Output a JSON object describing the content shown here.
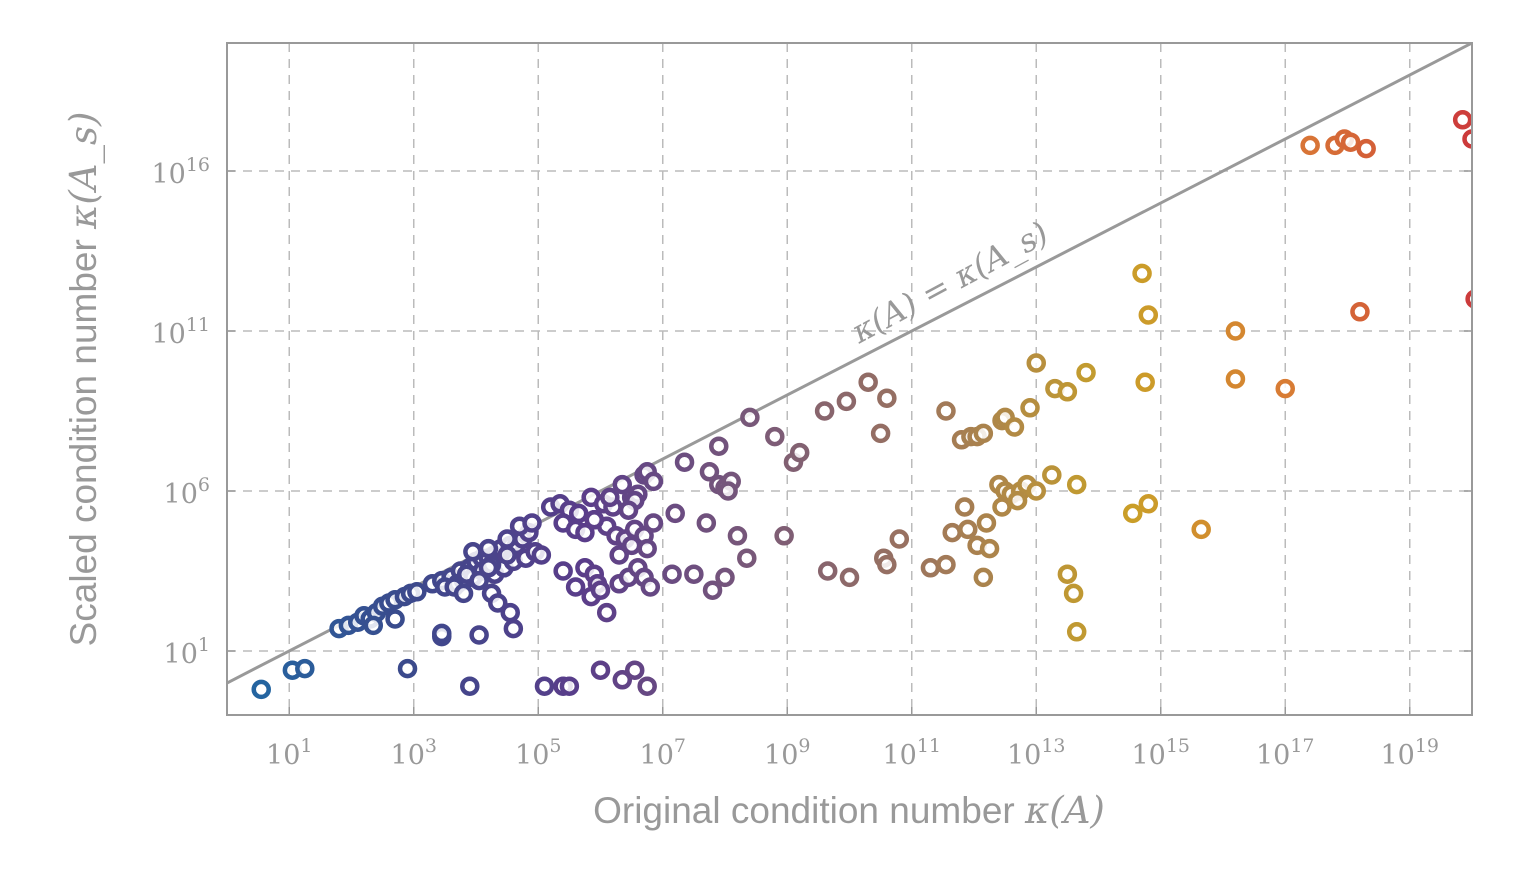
{
  "chart_data": {
    "type": "scatter",
    "xscale": "log",
    "yscale": "log",
    "xlim": [
      1,
      1e+20
    ],
    "ylim": [
      0.1,
      1e+20
    ],
    "grid": true,
    "xlabel_text": "Original condition number ",
    "xlabel_math": "κ(A)",
    "ylabel_text": "Scaled condition number ",
    "ylabel_math": "κ(A_s)",
    "diagonal_label": "κ(A) = κ(A_s)",
    "x_ticks": [
      {
        "exp": 1,
        "base": "10",
        "sup": "1"
      },
      {
        "exp": 3,
        "base": "10",
        "sup": "3"
      },
      {
        "exp": 5,
        "base": "10",
        "sup": "5"
      },
      {
        "exp": 7,
        "base": "10",
        "sup": "7"
      },
      {
        "exp": 9,
        "base": "10",
        "sup": "9"
      },
      {
        "exp": 11,
        "base": "10",
        "sup": "11"
      },
      {
        "exp": 13,
        "base": "10",
        "sup": "13"
      },
      {
        "exp": 15,
        "base": "10",
        "sup": "15"
      },
      {
        "exp": 17,
        "base": "10",
        "sup": "17"
      },
      {
        "exp": 19,
        "base": "10",
        "sup": "19"
      }
    ],
    "y_ticks": [
      {
        "exp": 1,
        "base": "10",
        "sup": "1"
      },
      {
        "exp": 6,
        "base": "10",
        "sup": "6"
      },
      {
        "exp": 11,
        "base": "10",
        "sup": "11"
      },
      {
        "exp": 16,
        "base": "10",
        "sup": "16"
      }
    ],
    "colormap": [
      "#1f6aa5",
      "#3b4a8c",
      "#5a3d8a",
      "#7a5a78",
      "#a0785a",
      "#c9a227",
      "#d97a35",
      "#cc3b3b"
    ],
    "points": [
      [
        0.55,
        -0.2
      ],
      [
        1.05,
        0.4
      ],
      [
        1.25,
        0.45
      ],
      [
        1.8,
        1.7
      ],
      [
        1.95,
        1.8
      ],
      [
        2.1,
        1.9
      ],
      [
        2.2,
        2.1
      ],
      [
        2.3,
        2.0
      ],
      [
        2.4,
        2.2
      ],
      [
        2.5,
        2.4
      ],
      [
        2.6,
        2.5
      ],
      [
        2.7,
        2.6
      ],
      [
        2.85,
        2.7
      ],
      [
        2.95,
        2.8
      ],
      [
        3.05,
        2.85
      ],
      [
        2.7,
        2.0
      ],
      [
        2.35,
        1.8
      ],
      [
        2.9,
        0.45
      ],
      [
        3.3,
        3.1
      ],
      [
        3.45,
        3.2
      ],
      [
        3.6,
        3.3
      ],
      [
        3.75,
        3.5
      ],
      [
        3.9,
        3.6
      ],
      [
        4.0,
        3.8
      ],
      [
        4.1,
        3.9
      ],
      [
        4.2,
        3.9
      ],
      [
        4.3,
        4.0
      ],
      [
        4.4,
        4.2
      ],
      [
        4.55,
        4.3
      ],
      [
        4.65,
        4.3
      ],
      [
        4.75,
        4.5
      ],
      [
        4.85,
        4.7
      ],
      [
        3.5,
        3.0
      ],
      [
        3.7,
        3.1
      ],
      [
        3.8,
        3.2
      ],
      [
        3.95,
        3.3
      ],
      [
        4.1,
        3.5
      ],
      [
        4.3,
        3.4
      ],
      [
        4.45,
        3.6
      ],
      [
        4.6,
        3.8
      ],
      [
        4.8,
        3.9
      ],
      [
        4.95,
        4.1
      ],
      [
        5.05,
        4.0
      ],
      [
        3.65,
        3.0
      ],
      [
        3.85,
        3.4
      ],
      [
        4.05,
        3.2
      ],
      [
        4.25,
        3.7
      ],
      [
        4.5,
        4.0
      ],
      [
        4.2,
        3.6
      ],
      [
        3.95,
        4.1
      ],
      [
        4.2,
        4.2
      ],
      [
        4.5,
        4.5
      ],
      [
        4.7,
        4.9
      ],
      [
        4.9,
        5.0
      ],
      [
        3.8,
        2.8
      ],
      [
        4.25,
        2.8
      ],
      [
        4.35,
        2.5
      ],
      [
        4.55,
        2.2
      ],
      [
        3.45,
        1.45
      ],
      [
        3.45,
        1.55
      ],
      [
        4.05,
        1.5
      ],
      [
        4.6,
        1.7
      ],
      [
        3.9,
        -0.1
      ],
      [
        5.1,
        -0.1
      ],
      [
        5.4,
        -0.1
      ],
      [
        5.5,
        -0.1
      ],
      [
        6.0,
        0.4
      ],
      [
        6.35,
        0.1
      ],
      [
        6.55,
        0.4
      ],
      [
        6.75,
        -0.1
      ],
      [
        5.2,
        5.5
      ],
      [
        5.35,
        5.6
      ],
      [
        5.5,
        5.4
      ],
      [
        5.65,
        5.3
      ],
      [
        5.85,
        5.8
      ],
      [
        6.05,
        5.6
      ],
      [
        6.2,
        5.5
      ],
      [
        5.4,
        5.0
      ],
      [
        5.6,
        4.8
      ],
      [
        5.75,
        4.7
      ],
      [
        5.9,
        5.1
      ],
      [
        6.1,
        4.9
      ],
      [
        6.25,
        4.6
      ],
      [
        6.4,
        4.5
      ],
      [
        6.55,
        4.8
      ],
      [
        6.7,
        4.6
      ],
      [
        6.85,
        5.0
      ],
      [
        5.6,
        3.0
      ],
      [
        5.4,
        3.5
      ],
      [
        5.75,
        3.6
      ],
      [
        5.9,
        3.4
      ],
      [
        5.95,
        3.1
      ],
      [
        5.85,
        2.7
      ],
      [
        6.0,
        2.9
      ],
      [
        6.3,
        3.1
      ],
      [
        6.45,
        3.3
      ],
      [
        6.6,
        3.6
      ],
      [
        6.3,
        4.0
      ],
      [
        6.5,
        4.3
      ],
      [
        6.75,
        4.2
      ],
      [
        6.7,
        3.3
      ],
      [
        6.8,
        3.0
      ],
      [
        6.1,
        2.2
      ],
      [
        7.15,
        3.4
      ],
      [
        7.5,
        3.4
      ],
      [
        7.8,
        2.9
      ],
      [
        8.0,
        3.3
      ],
      [
        5.9,
        5.1
      ],
      [
        6.15,
        5.8
      ],
      [
        6.35,
        6.2
      ],
      [
        6.5,
        5.8
      ],
      [
        6.6,
        5.9
      ],
      [
        6.7,
        6.5
      ],
      [
        6.75,
        6.6
      ],
      [
        6.55,
        5.7
      ],
      [
        6.45,
        5.4
      ],
      [
        6.85,
        6.3
      ],
      [
        7.2,
        5.3
      ],
      [
        7.35,
        6.9
      ],
      [
        7.7,
        5.0
      ],
      [
        7.75,
        6.6
      ],
      [
        7.9,
        6.2
      ],
      [
        8.0,
        6.1
      ],
      [
        8.1,
        6.3
      ],
      [
        8.05,
        6.0
      ],
      [
        7.9,
        7.4
      ],
      [
        8.4,
        8.3
      ],
      [
        8.8,
        7.7
      ],
      [
        9.1,
        6.9
      ],
      [
        9.2,
        7.2
      ],
      [
        8.2,
        4.6
      ],
      [
        8.95,
        4.6
      ],
      [
        8.35,
        3.9
      ],
      [
        9.6,
        8.5
      ],
      [
        9.95,
        8.8
      ],
      [
        10.3,
        9.4
      ],
      [
        10.6,
        8.9
      ],
      [
        10.5,
        7.8
      ],
      [
        9.65,
        3.5
      ],
      [
        10.0,
        3.3
      ],
      [
        10.55,
        3.9
      ],
      [
        10.8,
        4.5
      ],
      [
        10.6,
        3.7
      ],
      [
        11.3,
        3.6
      ],
      [
        11.55,
        3.7
      ],
      [
        11.65,
        4.7
      ],
      [
        11.9,
        4.8
      ],
      [
        12.05,
        4.3
      ],
      [
        12.15,
        3.3
      ],
      [
        12.25,
        4.2
      ],
      [
        11.55,
        8.5
      ],
      [
        11.8,
        7.6
      ],
      [
        11.95,
        7.7
      ],
      [
        12.05,
        7.7
      ],
      [
        12.15,
        7.8
      ],
      [
        12.45,
        8.2
      ],
      [
        12.5,
        8.3
      ],
      [
        12.65,
        8.0
      ],
      [
        12.9,
        8.6
      ],
      [
        13.3,
        9.2
      ],
      [
        12.4,
        6.2
      ],
      [
        12.5,
        6.0
      ],
      [
        12.6,
        5.9
      ],
      [
        12.75,
        6.0
      ],
      [
        12.85,
        6.2
      ],
      [
        13.0,
        6.0
      ],
      [
        13.25,
        6.5
      ],
      [
        13.65,
        6.2
      ],
      [
        11.85,
        5.5
      ],
      [
        12.45,
        5.5
      ],
      [
        12.7,
        5.7
      ],
      [
        13.0,
        10.0
      ],
      [
        13.5,
        9.1
      ],
      [
        13.8,
        9.7
      ],
      [
        14.75,
        9.4
      ],
      [
        14.7,
        12.8
      ],
      [
        14.8,
        11.5
      ],
      [
        16.2,
        11.0
      ],
      [
        16.2,
        9.5
      ],
      [
        17.0,
        9.2
      ],
      [
        18.2,
        11.6
      ],
      [
        14.55,
        5.3
      ],
      [
        14.8,
        5.6
      ],
      [
        15.65,
        4.8
      ],
      [
        12.2,
        5.0
      ],
      [
        13.65,
        1.6
      ],
      [
        13.5,
        3.4
      ],
      [
        13.6,
        2.8
      ],
      [
        17.4,
        16.8
      ],
      [
        17.8,
        16.8
      ],
      [
        17.95,
        17.0
      ],
      [
        18.05,
        16.9
      ],
      [
        18.3,
        16.7
      ],
      [
        19.85,
        17.6
      ],
      [
        20.0,
        17.0
      ],
      [
        20.05,
        12.0
      ],
      [
        20.15,
        12.1
      ]
    ]
  }
}
